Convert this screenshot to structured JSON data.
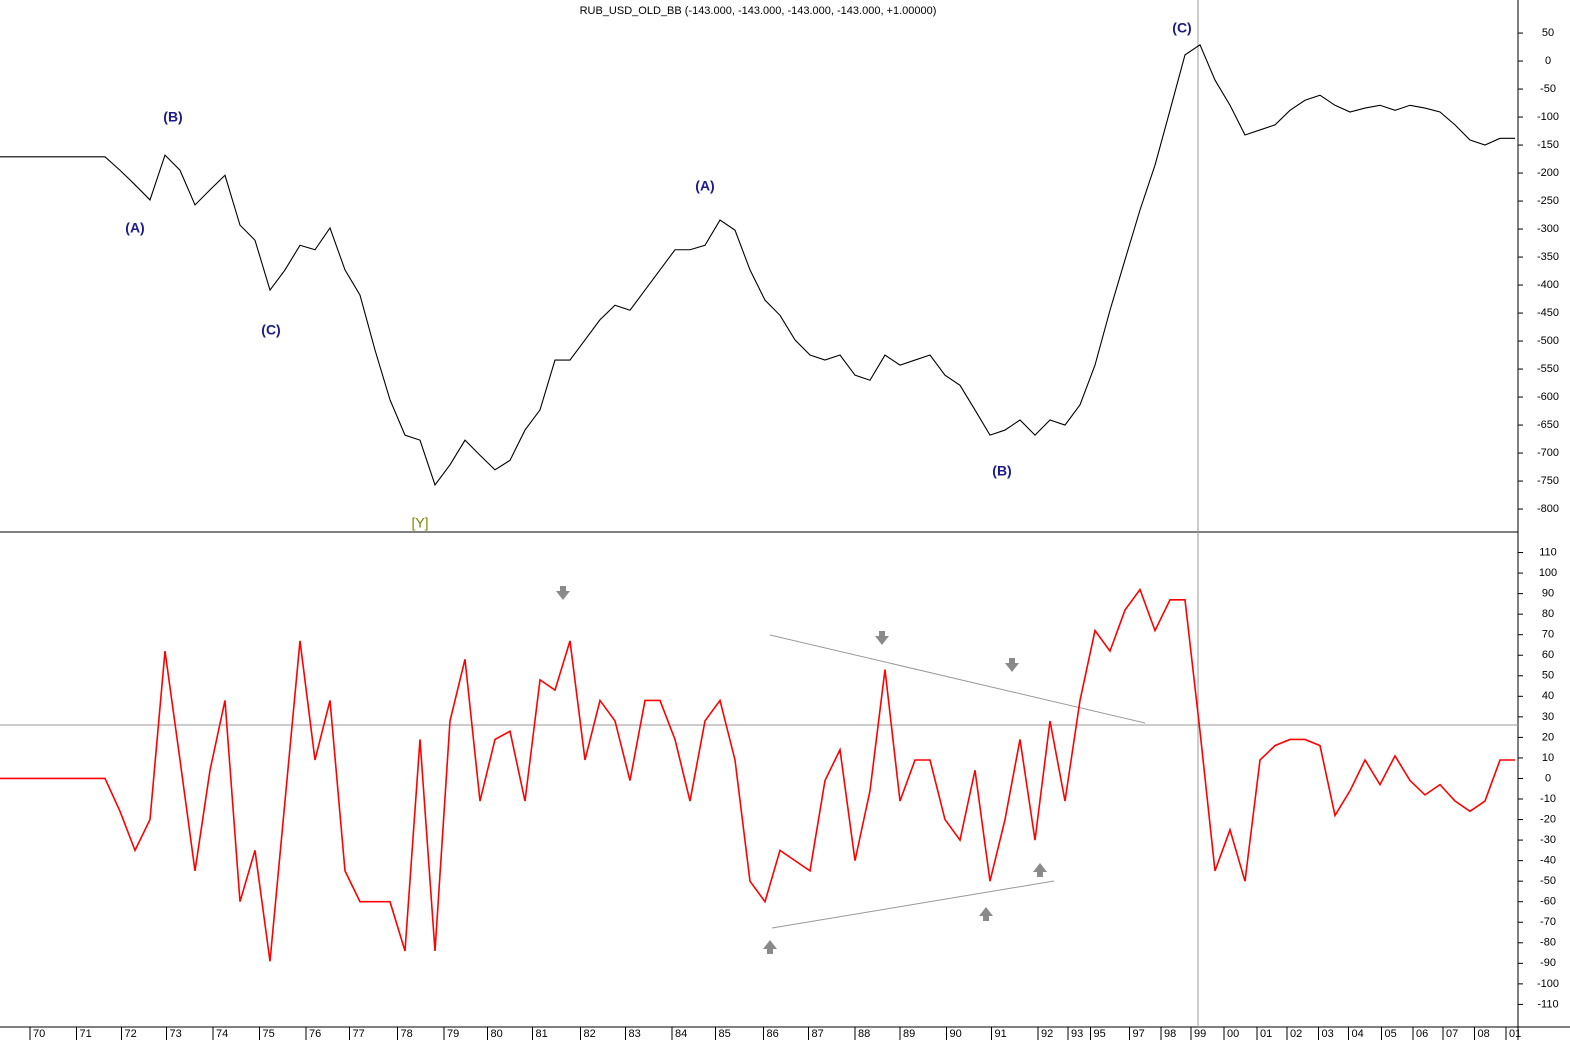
{
  "chart_data": [
    {
      "type": "line",
      "title": "RUB_USD_OLD_BB (-143.000, -143.000, -143.000, -143.000, +1.00000)",
      "annotations": [
        "(A)",
        "(B)",
        "(C)",
        "[Y]",
        "(A)",
        "(B)",
        "(C)"
      ],
      "xlim": [
        0,
        101.2
      ],
      "ylim": [
        -841,
        109
      ],
      "yticks": [
        50,
        0,
        -50,
        -100,
        -150,
        -200,
        -250,
        -300,
        -350,
        -400,
        -450,
        -500,
        -550,
        -600,
        -650,
        -700,
        -750,
        -800
      ],
      "series": [
        {
          "color": "#000000",
          "values": [
            -171,
            -171,
            -171,
            -171,
            -171,
            -171,
            -171,
            -171,
            -195,
            -221,
            -248,
            -168,
            -195,
            -257,
            -230,
            -204,
            -293,
            -320,
            -409,
            -373,
            -329,
            -337,
            -298,
            -373,
            -418,
            -516,
            -605,
            -668,
            -677,
            -757,
            -721,
            -677,
            -704,
            -730,
            -713,
            -659,
            -623,
            -534,
            -534,
            -498,
            -462,
            -436,
            -445,
            -409,
            -373,
            -337,
            -337,
            -329,
            -284,
            -302,
            -373,
            -427,
            -454,
            -498,
            -525,
            -534,
            -525,
            -561,
            -570,
            -525,
            -543,
            -534,
            -525,
            -561,
            -579,
            -623,
            -668,
            -659,
            -641,
            -668,
            -641,
            -650,
            -614,
            -543,
            -445,
            -355,
            -266,
            -186,
            -88,
            11,
            29,
            -34,
            -79,
            -132,
            -123,
            -114,
            -88,
            -70,
            -61,
            -79,
            -91,
            -84,
            -79,
            -88,
            -79,
            -84,
            -91,
            -114,
            -141,
            -150,
            -138,
            -138
          ]
        }
      ]
    },
    {
      "type": "line",
      "xlim": [
        0,
        101.2
      ],
      "ylim": [
        -121,
        120
      ],
      "yticks": [
        110,
        100,
        90,
        80,
        70,
        60,
        50,
        40,
        30,
        20,
        10,
        0,
        -10,
        -20,
        -30,
        -40,
        -50,
        -60,
        -70,
        -80,
        -90,
        -100,
        -110
      ],
      "xticks": [
        {
          "value": 2,
          "label": "70"
        },
        {
          "value": 5.1,
          "label": "71"
        },
        {
          "value": 8.1,
          "label": "72"
        },
        {
          "value": 11.1,
          "label": "73"
        },
        {
          "value": 14.2,
          "label": "74"
        },
        {
          "value": 17.3,
          "label": "75"
        },
        {
          "value": 20.4,
          "label": "76"
        },
        {
          "value": 23.3,
          "label": "77"
        },
        {
          "value": 26.5,
          "label": "78"
        },
        {
          "value": 29.6,
          "label": "79"
        },
        {
          "value": 32.5,
          "label": "80"
        },
        {
          "value": 35.5,
          "label": "81"
        },
        {
          "value": 38.7,
          "label": "82"
        },
        {
          "value": 41.7,
          "label": "83"
        },
        {
          "value": 44.8,
          "label": "84"
        },
        {
          "value": 47.7,
          "label": "85"
        },
        {
          "value": 50.9,
          "label": "86"
        },
        {
          "value": 53.9,
          "label": "87"
        },
        {
          "value": 57,
          "label": "88"
        },
        {
          "value": 60,
          "label": "89"
        },
        {
          "value": 63.1,
          "label": "90"
        },
        {
          "value": 66.1,
          "label": "91"
        },
        {
          "value": 69.2,
          "label": "92"
        },
        {
          "value": 71.2,
          "label": "93"
        },
        {
          "value": 72.7,
          "label": "95"
        },
        {
          "value": 75.3,
          "label": "97"
        },
        {
          "value": 77.4,
          "label": "98"
        },
        {
          "value": 79.4,
          "label": "99"
        },
        {
          "value": 81.6,
          "label": "00"
        },
        {
          "value": 83.8,
          "label": "01"
        },
        {
          "value": 85.8,
          "label": "02"
        },
        {
          "value": 87.9,
          "label": "03"
        },
        {
          "value": 89.9,
          "label": "04"
        },
        {
          "value": 92.1,
          "label": "05"
        },
        {
          "value": 94.2,
          "label": "06"
        },
        {
          "value": 96.2,
          "label": "07"
        },
        {
          "value": 98.3,
          "label": "08"
        },
        {
          "value": 100.4,
          "label": "01"
        }
      ],
      "series": [
        {
          "color": "#ff0000",
          "values": [
            0,
            0,
            0,
            0,
            0,
            0,
            0,
            0,
            -16,
            -35,
            -20,
            62,
            9,
            -45,
            4,
            38,
            -60,
            -35,
            -89,
            -11,
            67,
            9,
            38,
            -45,
            -60,
            -60,
            -60,
            -84,
            19,
            -84,
            28,
            58,
            -11,
            19,
            23,
            -11,
            48,
            43,
            67,
            9,
            38,
            28,
            -1,
            38,
            38,
            19,
            -11,
            28,
            38,
            9,
            -50,
            -60,
            -35,
            -40,
            -45,
            -1,
            14,
            -40,
            -6,
            53,
            -11,
            9,
            9,
            -20,
            -30,
            4,
            -50,
            -20,
            19,
            -30,
            28,
            -11,
            38,
            72,
            62,
            82,
            92,
            72,
            87,
            87,
            23,
            -45,
            -25,
            -50,
            9,
            16,
            19,
            19,
            16,
            -18,
            -6,
            9,
            -3,
            11,
            -1,
            -8,
            -3,
            -11,
            -16,
            -11,
            9,
            9
          ]
        }
      ]
    }
  ]
}
